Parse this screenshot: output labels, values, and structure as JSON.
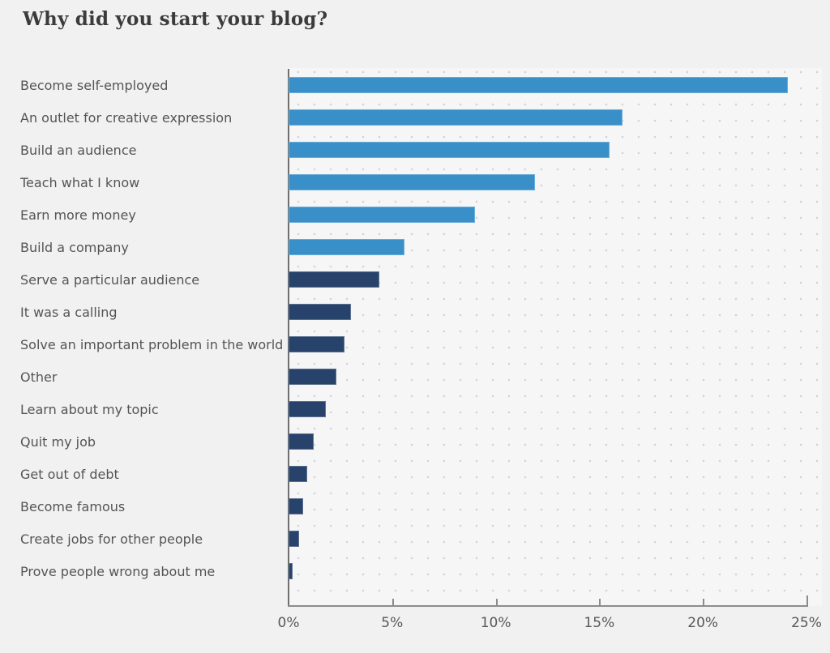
{
  "title": "Why did you start your blog?",
  "colors": {
    "bar_primary": "#3990c9",
    "bar_secondary": "#27426b",
    "page_background": "#f2f1f1",
    "plot_background": "#f7f6f6",
    "grid_dot": "#d2d2d2",
    "axis": "#8c8c8c",
    "title_text": "#3b3b3b",
    "label_text": "#545456",
    "tick_text": "#58585a"
  },
  "chart_data": {
    "type": "bar",
    "orientation": "horizontal",
    "title": "Why did you start your blog?",
    "xlabel": "",
    "ylabel": "",
    "unit": "%",
    "xlim": [
      0,
      25
    ],
    "x_tick_step": 5,
    "x_tick_labels": [
      "0%",
      "5%",
      "10%",
      "15%",
      "20%",
      "25%"
    ],
    "grid": "dotted",
    "legend": "none",
    "categories": [
      "Become self-employed",
      "An outlet for creative expression",
      "Build an audience",
      "Teach what I know",
      "Earn more money",
      "Build a company",
      "Serve a particular audience",
      "It was a calling",
      "Solve an important problem in the world",
      "Other",
      "Learn about my topic",
      "Quit my job",
      "Get out of debt",
      "Become famous",
      "Create jobs for other people",
      "Prove people wrong about me"
    ],
    "values": [
      24.1,
      16.1,
      15.5,
      11.9,
      9.0,
      5.6,
      4.4,
      3.0,
      2.7,
      2.3,
      1.8,
      1.2,
      0.9,
      0.7,
      0.5,
      0.2
    ],
    "bar_colors": [
      "#3990c9",
      "#3990c9",
      "#3990c9",
      "#3990c9",
      "#3990c9",
      "#3990c9",
      "#27426b",
      "#27426b",
      "#27426b",
      "#27426b",
      "#27426b",
      "#27426b",
      "#27426b",
      "#27426b",
      "#27426b",
      "#27426b"
    ]
  }
}
